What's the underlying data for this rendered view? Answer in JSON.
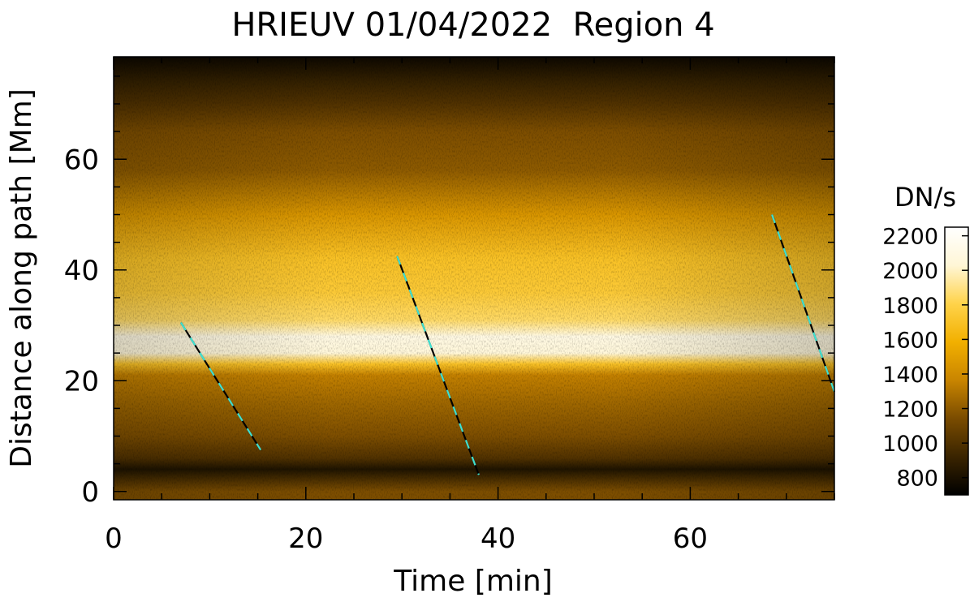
{
  "chart_data": {
    "type": "heatmap",
    "title": "HRIEUV 01/04/2022  Region 4",
    "xlabel": "Time [min]",
    "ylabel": "Distance along path [Mm]",
    "xlim": [
      0,
      75
    ],
    "ylim": [
      -1.5,
      78.5
    ],
    "xticks": [
      0,
      20,
      40,
      60
    ],
    "yticks": [
      0,
      20,
      40,
      60
    ],
    "x_minor_step": 5,
    "y_minor_step": 5,
    "colorscale": {
      "label": "DN/s",
      "range": [
        700,
        2250
      ],
      "ticks": [
        800,
        1000,
        1200,
        1400,
        1600,
        1800,
        2000,
        2200
      ],
      "colors": [
        "#000000",
        "#3a2400",
        "#7a4c00",
        "#c98500",
        "#f2b000",
        "#ffd34a",
        "#fff6d6",
        "#ffffff"
      ]
    },
    "brightness_profile": [
      {
        "distance": 0,
        "value": 1150
      },
      {
        "distance": 4,
        "value": 820
      },
      {
        "distance": 6,
        "value": 1000
      },
      {
        "distance": 10,
        "value": 1150
      },
      {
        "distance": 16,
        "value": 1250
      },
      {
        "distance": 21,
        "value": 1350
      },
      {
        "distance": 23,
        "value": 1700
      },
      {
        "distance": 25,
        "value": 2050
      },
      {
        "distance": 28,
        "value": 2100
      },
      {
        "distance": 31,
        "value": 1850
      },
      {
        "distance": 36,
        "value": 1750
      },
      {
        "distance": 42,
        "value": 1700
      },
      {
        "distance": 50,
        "value": 1450
      },
      {
        "distance": 58,
        "value": 1200
      },
      {
        "distance": 65,
        "value": 1150
      },
      {
        "distance": 70,
        "value": 1000
      },
      {
        "distance": 74,
        "value": 900
      },
      {
        "distance": 78.5,
        "value": 750
      }
    ],
    "tracks": [
      {
        "x": [
          7.0,
          15.3
        ],
        "y": [
          30.5,
          7.5
        ]
      },
      {
        "x": [
          29.5,
          38.0
        ],
        "y": [
          42.5,
          3.0
        ]
      },
      {
        "x": [
          68.5,
          75.0
        ],
        "y": [
          50.0,
          18.0
        ]
      }
    ],
    "track_colors": [
      "#000000",
      "#40e0d0"
    ]
  }
}
